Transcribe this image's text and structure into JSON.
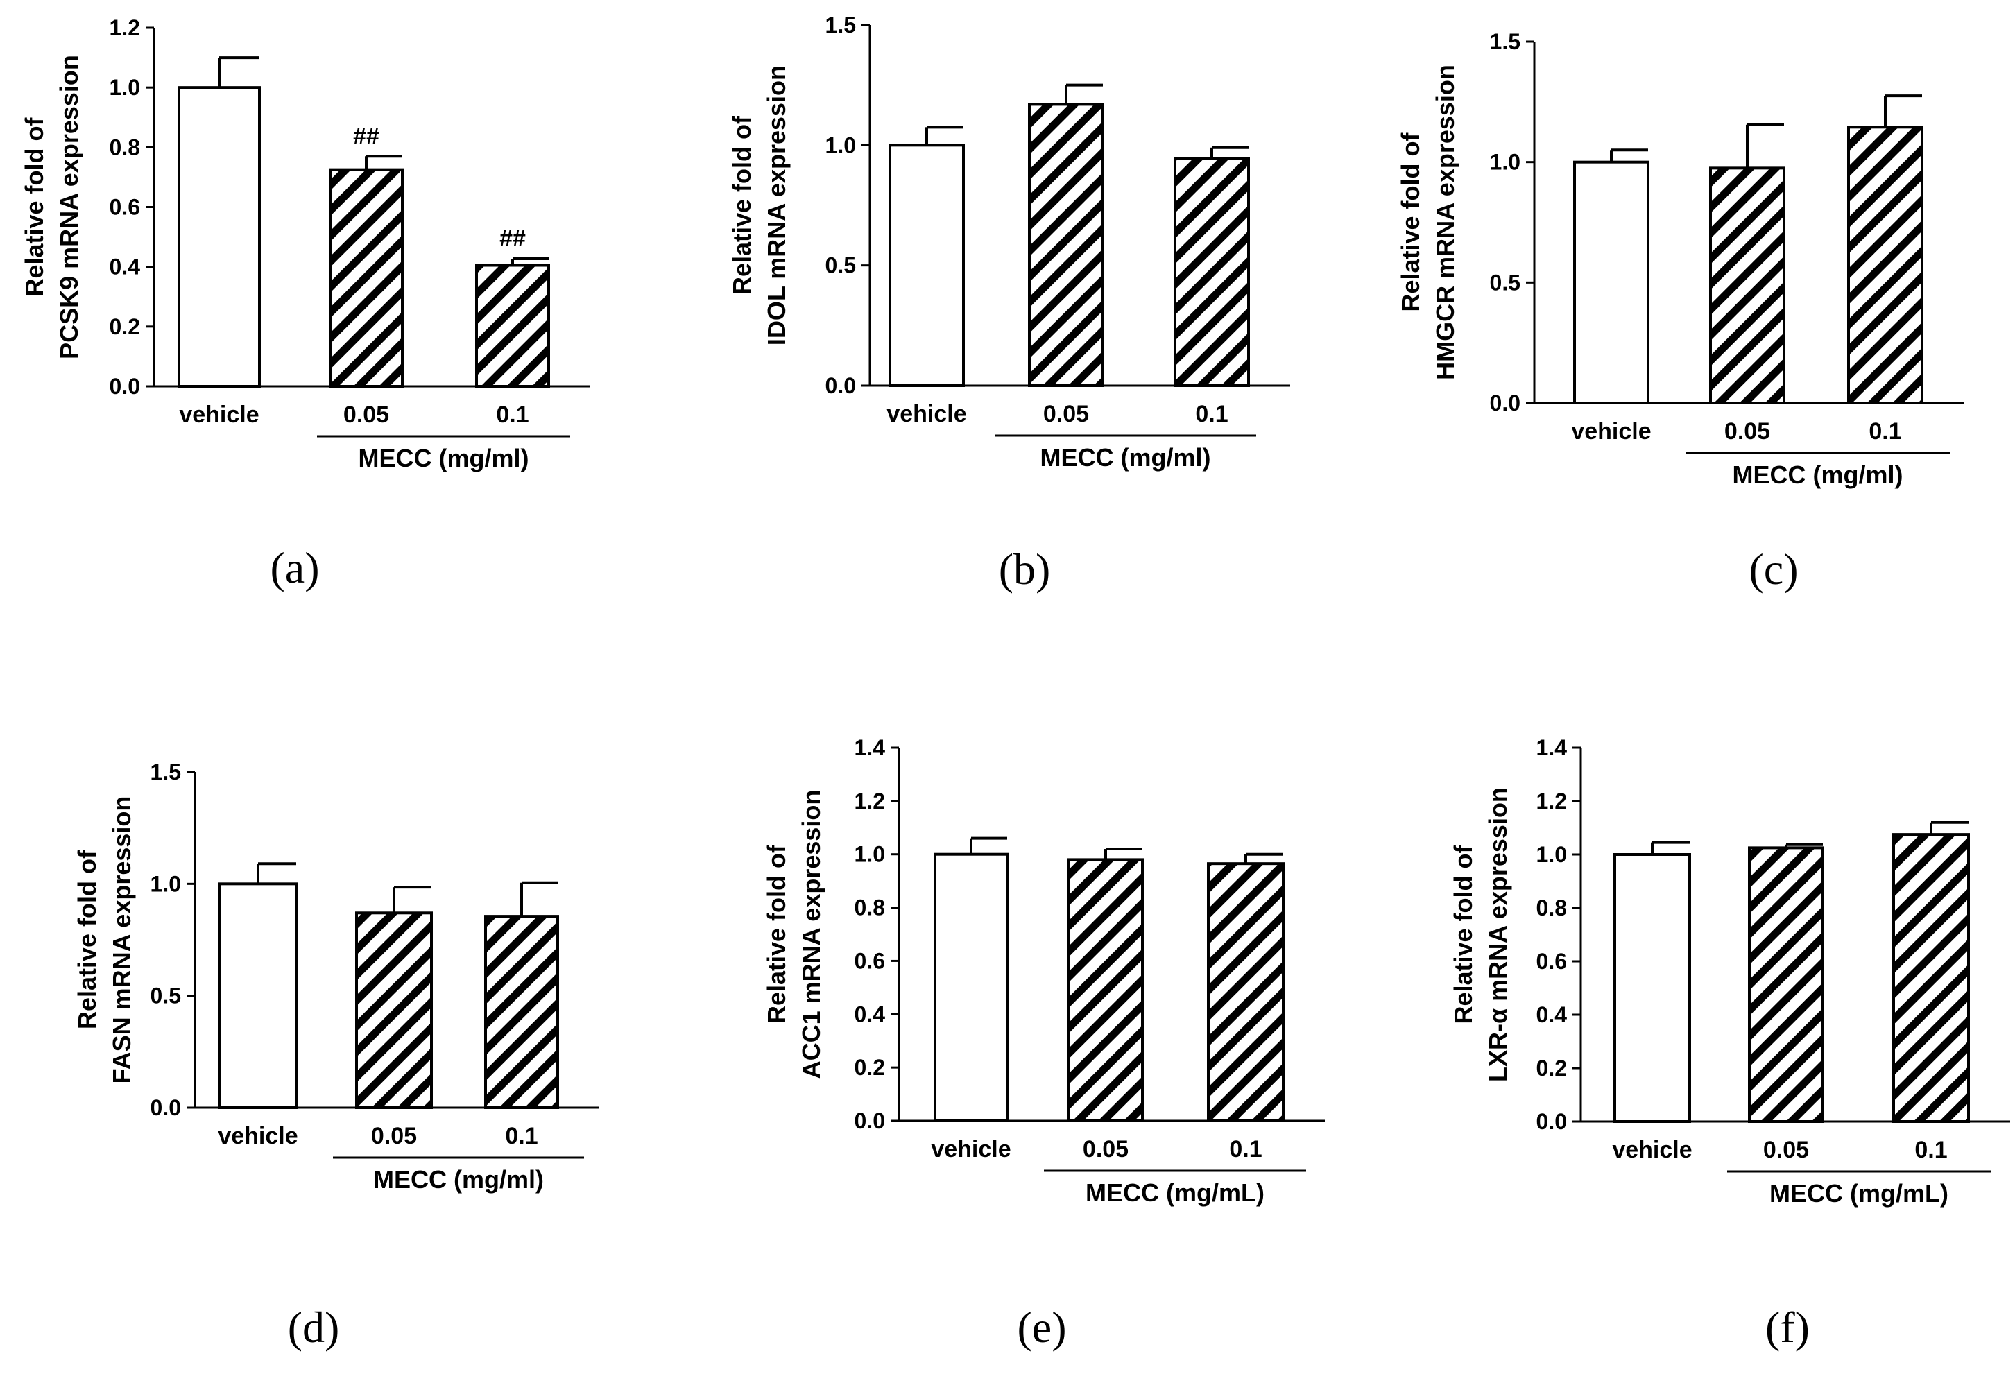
{
  "colors": {
    "ink": "#000000",
    "bar_fill": "#ffffff"
  },
  "chart_data": [
    {
      "type": "bar",
      "panel": "(a)",
      "categories": [
        "vehicle",
        "0.05",
        "0.1"
      ],
      "values": [
        1.0,
        0.725,
        0.405
      ],
      "errors": [
        0.1,
        0.045,
        0.022
      ],
      "patterns": [
        "open",
        "hatched",
        "hatched"
      ],
      "annotations": [
        "",
        "##",
        "##"
      ],
      "ylabel": [
        "Relative fold of",
        "PCSK9 mRNA expression"
      ],
      "group_label": "MECC (mg/ml)",
      "ylim": [
        0,
        1.2
      ],
      "yticks": [
        "0.0",
        "0.2",
        "0.4",
        "0.6",
        "0.8",
        "1.0",
        "1.2"
      ]
    },
    {
      "type": "bar",
      "panel": "(b)",
      "categories": [
        "vehicle",
        "0.05",
        "0.1"
      ],
      "values": [
        1.0,
        1.17,
        0.945
      ],
      "errors": [
        0.075,
        0.08,
        0.045
      ],
      "patterns": [
        "open",
        "hatched",
        "hatched"
      ],
      "annotations": [
        "",
        "",
        ""
      ],
      "ylabel": [
        "Relative fold of",
        "IDOL mRNA expression"
      ],
      "group_label": "MECC (mg/ml)",
      "ylim": [
        0,
        1.5
      ],
      "yticks": [
        "0.0",
        "0.5",
        "1.0",
        "1.5"
      ]
    },
    {
      "type": "bar",
      "panel": "(c)",
      "categories": [
        "vehicle",
        "0.05",
        "0.1"
      ],
      "values": [
        1.0,
        0.975,
        1.145
      ],
      "errors": [
        0.05,
        0.18,
        0.13
      ],
      "patterns": [
        "open",
        "hatched",
        "hatched"
      ],
      "annotations": [
        "",
        "",
        ""
      ],
      "ylabel": [
        "Relative fold of",
        "HMGCR mRNA expression"
      ],
      "group_label": "MECC (mg/ml)",
      "ylim": [
        0,
        1.5
      ],
      "yticks": [
        "0.0",
        "0.5",
        "1.0",
        "1.5"
      ]
    },
    {
      "type": "bar",
      "panel": "(d)",
      "categories": [
        "vehicle",
        "0.05",
        "0.1"
      ],
      "values": [
        1.0,
        0.87,
        0.855
      ],
      "errors": [
        0.09,
        0.115,
        0.15
      ],
      "patterns": [
        "open",
        "hatched",
        "hatched"
      ],
      "annotations": [
        "",
        "",
        ""
      ],
      "ylabel": [
        "Relative fold of",
        "FASN mRNA expression"
      ],
      "group_label": "MECC (mg/ml)",
      "ylim": [
        0,
        1.5
      ],
      "yticks": [
        "0.0",
        "0.5",
        "1.0",
        "1.5"
      ]
    },
    {
      "type": "bar",
      "panel": "(e)",
      "categories": [
        "vehicle",
        "0.05",
        "0.1"
      ],
      "values": [
        1.0,
        0.98,
        0.965
      ],
      "errors": [
        0.06,
        0.04,
        0.035
      ],
      "patterns": [
        "open",
        "hatched",
        "hatched"
      ],
      "annotations": [
        "",
        "",
        ""
      ],
      "ylabel": [
        "Relative fold of",
        "ACC1 mRNA expression"
      ],
      "group_label": "MECC (mg/mL)",
      "ylim": [
        0,
        1.4
      ],
      "yticks": [
        "0.0",
        "0.2",
        "0.4",
        "0.6",
        "0.8",
        "1.0",
        "1.2",
        "1.4"
      ]
    },
    {
      "type": "bar",
      "panel": "(f)",
      "categories": [
        "vehicle",
        "0.05",
        "0.1"
      ],
      "values": [
        1.0,
        1.025,
        1.075
      ],
      "errors": [
        0.045,
        0.012,
        0.045
      ],
      "patterns": [
        "open",
        "hatched",
        "hatched"
      ],
      "annotations": [
        "",
        "",
        ""
      ],
      "ylabel": [
        "Relative fold of",
        "LXR-α mRNA expression"
      ],
      "group_label": "MECC (mg/mL)",
      "ylim": [
        0,
        1.4
      ],
      "yticks": [
        "0.0",
        "0.2",
        "0.4",
        "0.6",
        "0.8",
        "1.0",
        "1.2",
        "1.4"
      ]
    }
  ]
}
